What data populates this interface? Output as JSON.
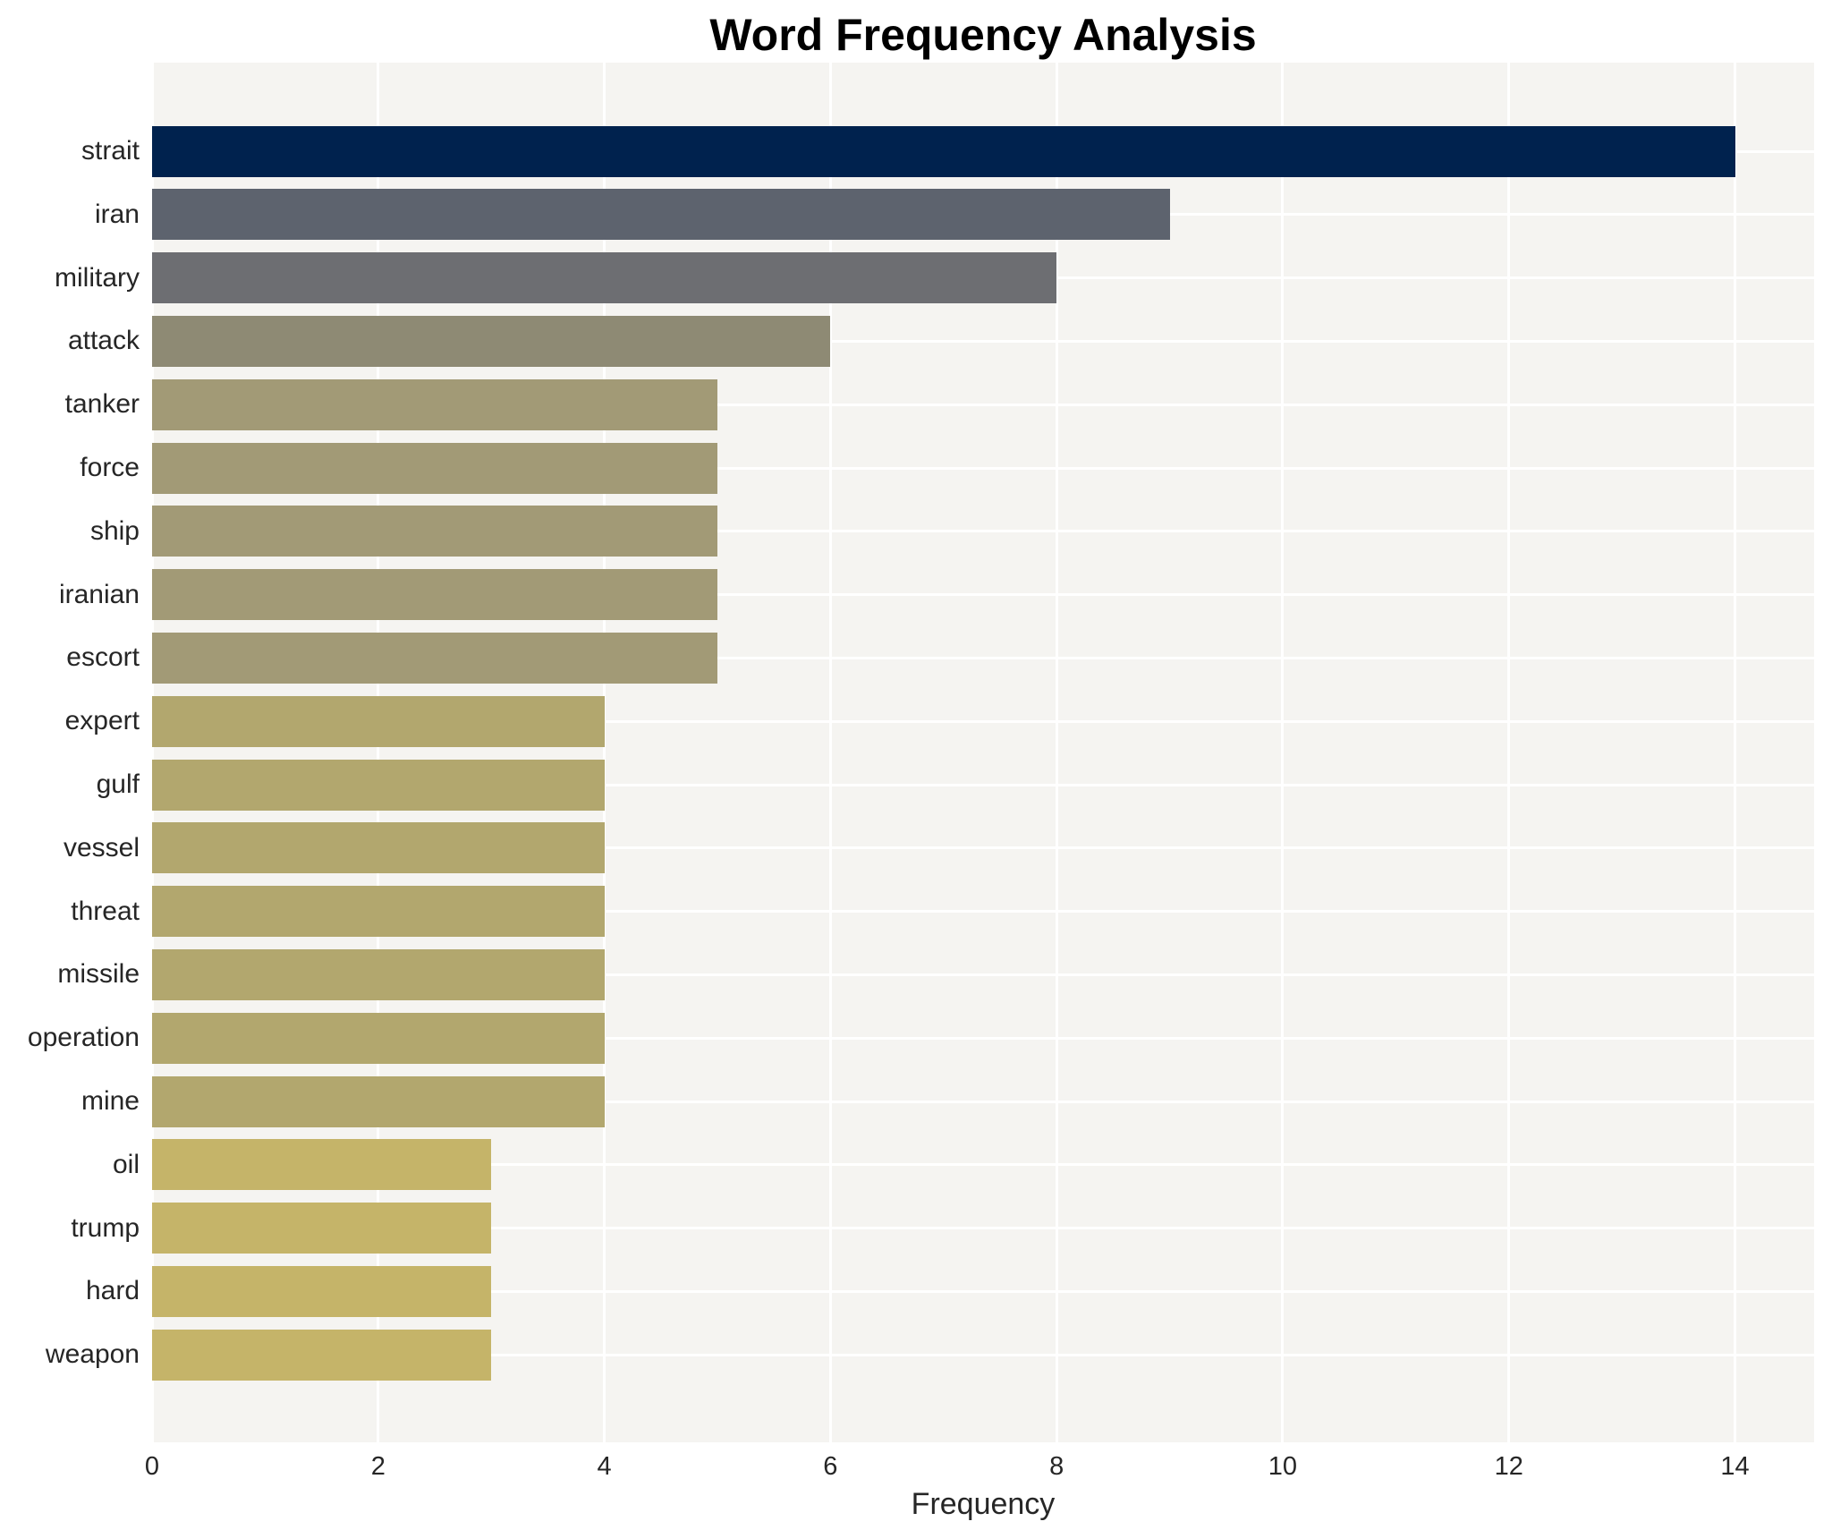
{
  "title": "Word Frequency Analysis",
  "chart_data": {
    "type": "bar",
    "orientation": "horizontal",
    "title": "Word Frequency Analysis",
    "xlabel": "Frequency",
    "ylabel": "",
    "categories": [
      "strait",
      "iran",
      "military",
      "attack",
      "tanker",
      "force",
      "ship",
      "iranian",
      "escort",
      "expert",
      "gulf",
      "vessel",
      "threat",
      "missile",
      "operation",
      "mine",
      "oil",
      "trump",
      "hard",
      "weapon"
    ],
    "values": [
      14,
      9,
      8,
      6,
      5,
      5,
      5,
      5,
      5,
      4,
      4,
      4,
      4,
      4,
      4,
      4,
      3,
      3,
      3,
      3
    ],
    "bar_colors": [
      "#00224e",
      "#5d636e",
      "#6d6e72",
      "#8e8a74",
      "#a29a76",
      "#a29a76",
      "#a29a76",
      "#a29a76",
      "#a29a76",
      "#b2a76e",
      "#b2a76e",
      "#b2a76e",
      "#b2a76e",
      "#b2a76e",
      "#b2a76e",
      "#b2a76e",
      "#c5b469",
      "#c5b469",
      "#c5b469",
      "#c5b469"
    ],
    "x_ticks": [
      "0",
      "2",
      "4",
      "6",
      "8",
      "10",
      "12",
      "14"
    ],
    "x_tick_values": [
      0,
      2,
      4,
      6,
      8,
      10,
      12,
      14
    ],
    "xlim": [
      0,
      14.7
    ],
    "grid": "on",
    "gridline_color": "#ffffff",
    "panel_bg_color": "#f5f4f1",
    "text_color": "#262626",
    "legend": "none"
  }
}
